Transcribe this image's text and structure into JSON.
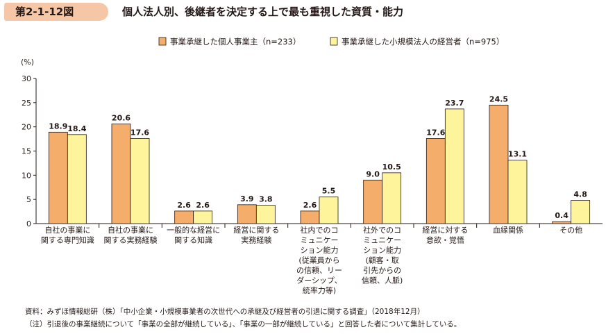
{
  "figure_label": "第2-1-12図",
  "title": "個人法人別、後継者を決定する上で最も重視した資質・能力",
  "colors": {
    "series1": "#f4ad6a",
    "series2": "#fdf49c",
    "badge": "#f6c7a6",
    "axis": "#231815"
  },
  "chart_data": {
    "type": "bar",
    "unit": "(%)",
    "ylim": [
      0,
      30
    ],
    "yticks": [
      0,
      5,
      10,
      15,
      20,
      25,
      30
    ],
    "categories": [
      [
        "自社の事業に",
        "関する専門知識"
      ],
      [
        "自社の事業に",
        "関する実務経験"
      ],
      [
        "一般的な経営に",
        "関する知識"
      ],
      [
        "経営に関する",
        "実務経験"
      ],
      [
        "社内でのコ",
        "ミュニケー",
        "ション能力",
        "(従業員から",
        "の信頼、リー",
        "ダーシップ、",
        "統率力等)"
      ],
      [
        "社外でのコ",
        "ミュニケー",
        "ション能力",
        "(顧客・取",
        "引先からの",
        "信頼、人脈)"
      ],
      [
        "経営に対する",
        "意欲・覚悟"
      ],
      [
        "血縁関係"
      ],
      [
        "その他"
      ]
    ],
    "series": [
      {
        "name": "事業承継した個人事業主（n=233）",
        "values": [
          18.9,
          20.6,
          2.6,
          3.9,
          2.6,
          9.0,
          17.6,
          24.5,
          0.4
        ]
      },
      {
        "name": "事業承継した小規模法人の経営者（n=975）",
        "values": [
          18.4,
          17.6,
          2.6,
          3.8,
          5.5,
          10.5,
          23.7,
          13.1,
          4.8
        ]
      }
    ]
  },
  "footnotes": [
    "資料：みずほ情報総研（株）「中小企業・小規模事業者の次世代への承継及び経営者の引退に関する調査」（2018年12月）",
    "（注）引退後の事業継続について「事業の全部が継続している」、「事業の一部が継続している」と回答した者について集計している。"
  ]
}
